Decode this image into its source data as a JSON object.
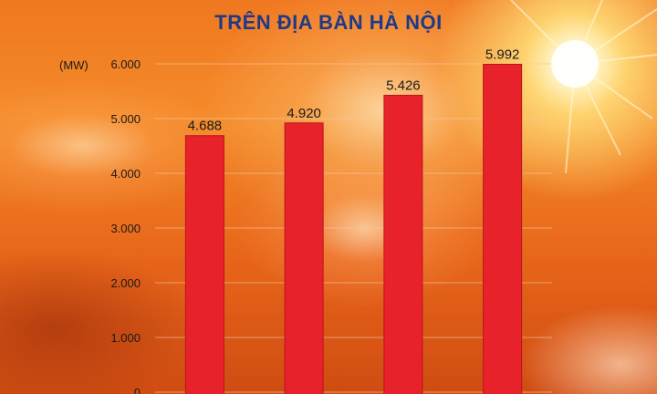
{
  "header": {
    "title_line1": "",
    "title_line2": "TRÊN ĐỊA BÀN HÀ NỘI"
  },
  "colors": {
    "bar": "#e8222a",
    "title": "#1d3a8a",
    "text": "#1a1a1a",
    "gridline": "#f3c9a8"
  },
  "chart_data": {
    "type": "bar",
    "title": "TRÊN ĐỊA BÀN HÀ NỘI",
    "ylabel": "(MW)",
    "xlabel": "",
    "categories": [
      "",
      "",
      "",
      ""
    ],
    "values": [
      4688,
      4920,
      5426,
      5992
    ],
    "value_labels": [
      "4.688",
      "4.920",
      "5.426",
      "5.992"
    ],
    "ylim": [
      0,
      6000
    ],
    "yticks": [
      0,
      1000,
      2000,
      3000,
      4000,
      5000,
      6000
    ],
    "ytick_labels": [
      "0",
      "1.000",
      "2.000",
      "3.000",
      "4.000",
      "5.000",
      "6.000"
    ],
    "grid": true,
    "legend": "none"
  }
}
